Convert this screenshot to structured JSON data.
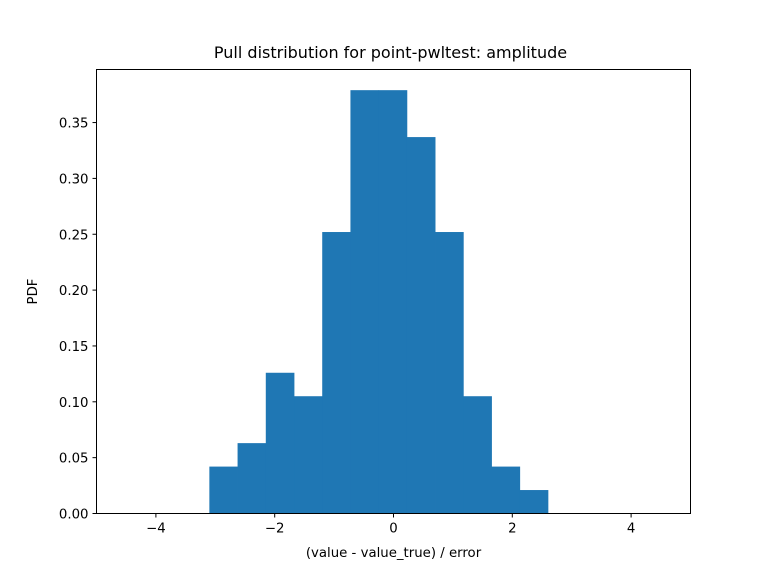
{
  "chart_data": {
    "type": "bar",
    "title": "Pull distribution for point-pwltest: amplitude",
    "xlabel": "(value - value_true) / error",
    "ylabel": "PDF",
    "xlim": [
      -5,
      5
    ],
    "ylim": [
      0,
      0.3975
    ],
    "grid": false,
    "bar_color": "#1f77b4",
    "bin_edges": [
      -3.1,
      -2.625,
      -2.15,
      -1.675,
      -1.2,
      -0.725,
      -0.25,
      0.225,
      0.7,
      1.175,
      1.65,
      2.125,
      2.6
    ],
    "values": [
      0.042,
      0.063,
      0.126,
      0.105,
      0.252,
      0.379,
      0.379,
      0.337,
      0.252,
      0.105,
      0.042,
      0.021
    ],
    "x_ticks": [
      -4,
      -2,
      0,
      2,
      4
    ],
    "x_tick_labels": [
      "−4",
      "−2",
      "0",
      "2",
      "4"
    ],
    "y_ticks": [
      0.0,
      0.05,
      0.1,
      0.15,
      0.2,
      0.25,
      0.3,
      0.35
    ],
    "y_tick_labels": [
      "0.00",
      "0.05",
      "0.10",
      "0.15",
      "0.20",
      "0.25",
      "0.30",
      "0.35"
    ]
  }
}
